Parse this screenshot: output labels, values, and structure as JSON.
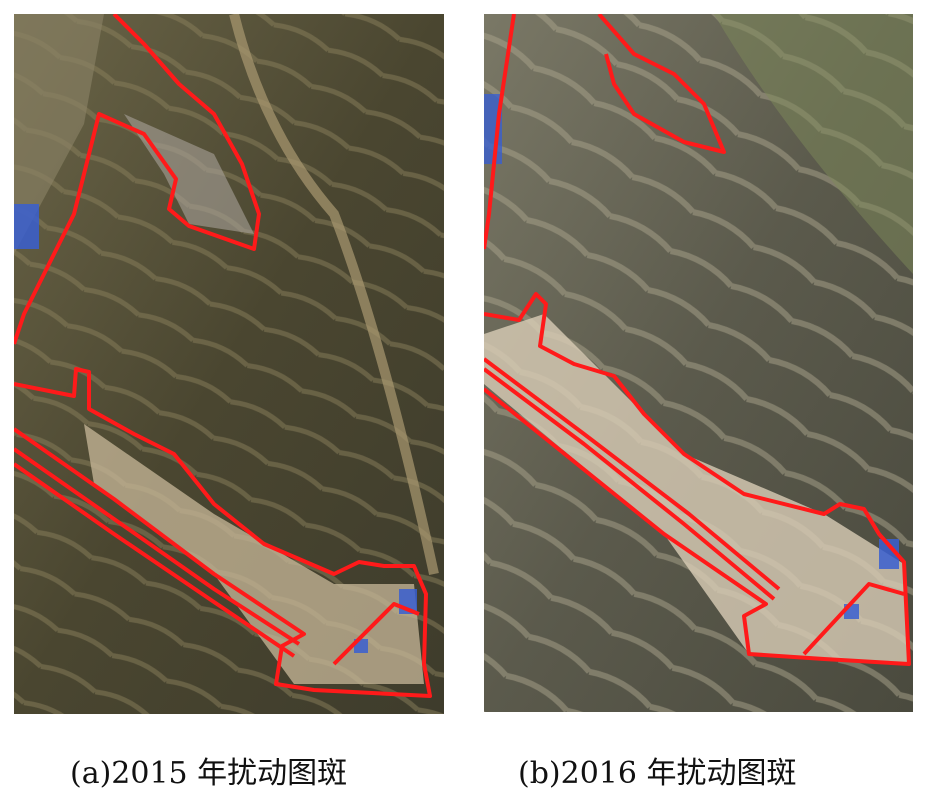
{
  "figure": {
    "panels": [
      {
        "id": "a",
        "caption": "(a)2015 年扰动图斑",
        "year": 2015
      },
      {
        "id": "b",
        "caption": "(b)2016 年扰动图斑",
        "year": 2016
      }
    ],
    "colors": {
      "outline": "#ff1a1a",
      "terrain_a": "#4a4630",
      "terrain_b": "#5b5a4c",
      "disturbed": "#c8b89a",
      "buildings": "#3a5fd0"
    }
  }
}
